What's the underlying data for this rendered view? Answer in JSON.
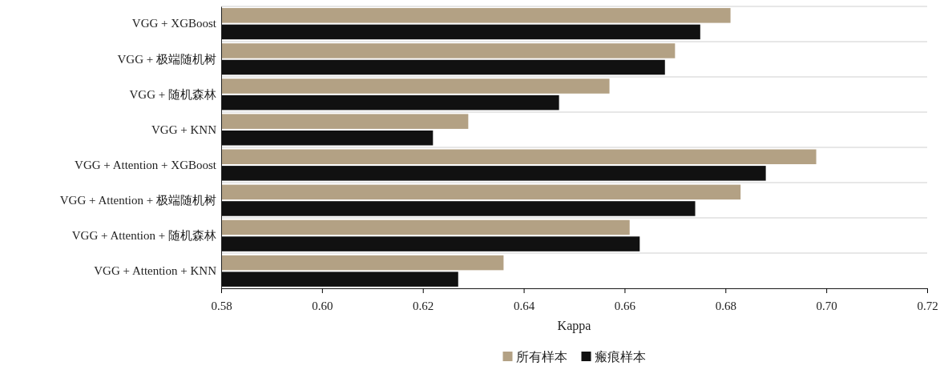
{
  "chart_data": {
    "type": "bar",
    "orientation": "horizontal",
    "xlabel": "Kappa",
    "categories": [
      "VGG + XGBoost",
      "VGG + 极端随机树",
      "VGG + 随机森林",
      "VGG + KNN",
      "VGG + Attention + XGBoost",
      "VGG + Attention + 极端随机树",
      "VGG + Attention + 随机森林",
      "VGG + Attention + KNN"
    ],
    "series": [
      {
        "name": "所有样本",
        "color": "#b3a184",
        "values": [
          0.681,
          0.67,
          0.657,
          0.629,
          0.698,
          0.683,
          0.661,
          0.636
        ]
      },
      {
        "name": "瘢痕样本",
        "color": "#111111",
        "values": [
          0.675,
          0.668,
          0.647,
          0.622,
          0.688,
          0.674,
          0.663,
          0.627
        ]
      }
    ],
    "xlim": [
      0.58,
      0.72
    ],
    "xticks": [
      0.58,
      {
        "value": 0.6,
        "label": "0.60"
      },
      0.62,
      0.64,
      0.66,
      0.68,
      {
        "value": 0.7,
        "label": "0.70"
      },
      0.72
    ],
    "grid": "y",
    "legend": "bottom"
  }
}
